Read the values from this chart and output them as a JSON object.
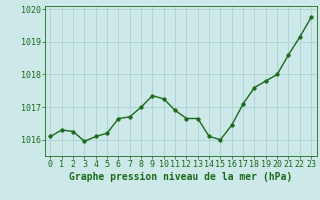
{
  "x": [
    0,
    1,
    2,
    3,
    4,
    5,
    6,
    7,
    8,
    9,
    10,
    11,
    12,
    13,
    14,
    15,
    16,
    17,
    18,
    19,
    20,
    21,
    22,
    23
  ],
  "y": [
    1016.1,
    1016.3,
    1016.25,
    1015.95,
    1016.1,
    1016.2,
    1016.65,
    1016.7,
    1017.0,
    1017.35,
    1017.25,
    1016.9,
    1016.65,
    1016.65,
    1016.1,
    1016.0,
    1016.45,
    1017.1,
    1017.6,
    1017.8,
    1018.0,
    1018.6,
    1019.15,
    1019.75
  ],
  "line_color": "#1a6b1a",
  "marker_color": "#1a6b1a",
  "bg_color": "#cce8e8",
  "grid_color": "#a8cccc",
  "xlabel": "Graphe pression niveau de la mer (hPa)",
  "xlabel_color": "#1a6b1a",
  "ylim": [
    1015.5,
    1020.1
  ],
  "xlim": [
    -0.5,
    23.5
  ],
  "yticks": [
    1016,
    1017,
    1018,
    1019,
    1020
  ],
  "xtick_labels": [
    "0",
    "1",
    "2",
    "3",
    "4",
    "5",
    "6",
    "7",
    "8",
    "9",
    "10",
    "11",
    "12",
    "13",
    "14",
    "15",
    "16",
    "17",
    "18",
    "19",
    "20",
    "21",
    "22",
    "23"
  ],
  "tick_color": "#1a6b1a",
  "font_size_xlabel": 7,
  "font_size_ticks": 6,
  "line_width": 1.0,
  "marker_size": 2.5
}
